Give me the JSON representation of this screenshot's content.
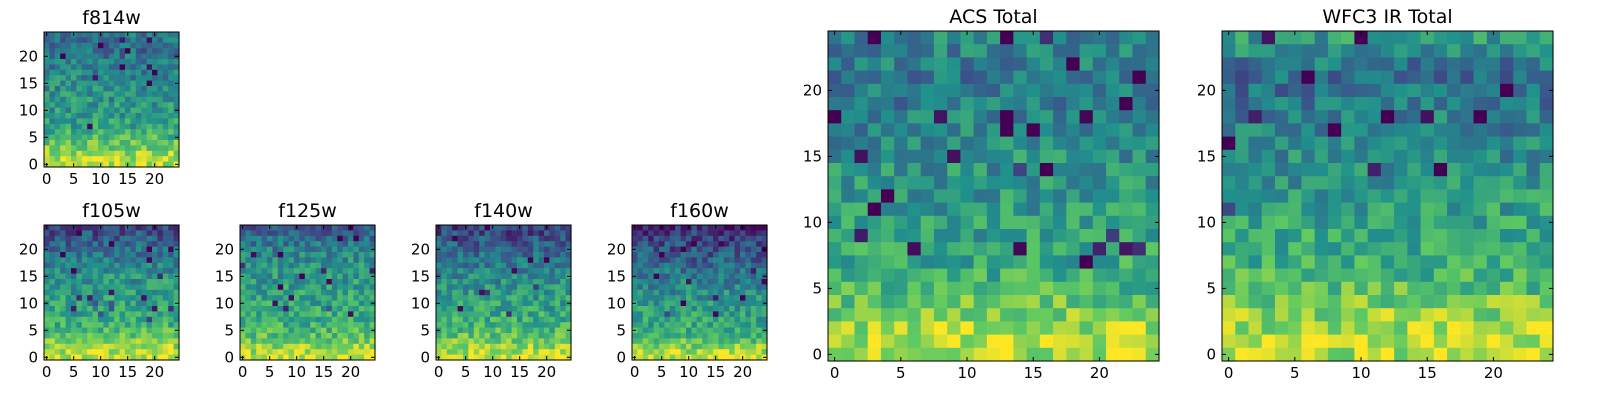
{
  "figure": {
    "background": "#ffffff",
    "colormap": "viridis",
    "colormap_stops": [
      "#440154",
      "#3b528b",
      "#21918c",
      "#5ec962",
      "#fde725"
    ]
  },
  "chart_data": [
    {
      "type": "heatmap",
      "title": "f814w",
      "grid_size": [
        25,
        25
      ],
      "xlim": [
        -0.5,
        24.5
      ],
      "ylim": [
        -0.5,
        24.5
      ],
      "xticks": [
        0,
        5,
        10,
        15,
        20
      ],
      "yticks": [
        0,
        5,
        10,
        15,
        20
      ],
      "origin": "lower",
      "value_range": [
        0,
        1
      ],
      "row_means_top_to_bottom": [
        0.4,
        0.38,
        0.36,
        0.36,
        0.38,
        0.4,
        0.42,
        0.44,
        0.46,
        0.47,
        0.48,
        0.49,
        0.5,
        0.51,
        0.52,
        0.54,
        0.56,
        0.58,
        0.62,
        0.66,
        0.72,
        0.78,
        0.84,
        0.88,
        0.9
      ],
      "pattern_note_seed": 11
    },
    {
      "type": "heatmap",
      "title": "f105w",
      "grid_size": [
        25,
        25
      ],
      "xlim": [
        -0.5,
        24.5
      ],
      "ylim": [
        -0.5,
        24.5
      ],
      "xticks": [
        0,
        5,
        10,
        15,
        20
      ],
      "yticks": [
        0,
        5,
        10,
        15,
        20
      ],
      "origin": "lower",
      "value_range": [
        0,
        1
      ],
      "row_means_top_to_bottom": [
        0.22,
        0.26,
        0.3,
        0.33,
        0.36,
        0.4,
        0.43,
        0.46,
        0.48,
        0.5,
        0.52,
        0.53,
        0.54,
        0.55,
        0.56,
        0.57,
        0.58,
        0.6,
        0.63,
        0.68,
        0.74,
        0.8,
        0.86,
        0.9,
        0.92
      ],
      "pattern_note_seed": 23
    },
    {
      "type": "heatmap",
      "title": "f125w",
      "grid_size": [
        25,
        25
      ],
      "xlim": [
        -0.5,
        24.5
      ],
      "ylim": [
        -0.5,
        24.5
      ],
      "xticks": [
        0,
        5,
        10,
        15,
        20
      ],
      "yticks": [
        0,
        5,
        10,
        15,
        20
      ],
      "origin": "lower",
      "value_range": [
        0,
        1
      ],
      "row_means_top_to_bottom": [
        0.3,
        0.33,
        0.36,
        0.4,
        0.43,
        0.46,
        0.48,
        0.5,
        0.52,
        0.53,
        0.54,
        0.55,
        0.56,
        0.57,
        0.58,
        0.59,
        0.6,
        0.62,
        0.64,
        0.67,
        0.71,
        0.76,
        0.82,
        0.88,
        0.92
      ],
      "pattern_note_seed": 37
    },
    {
      "type": "heatmap",
      "title": "f140w",
      "grid_size": [
        25,
        25
      ],
      "xlim": [
        -0.5,
        24.5
      ],
      "ylim": [
        -0.5,
        24.5
      ],
      "xticks": [
        0,
        5,
        10,
        15,
        20
      ],
      "yticks": [
        0,
        5,
        10,
        15,
        20
      ],
      "origin": "lower",
      "value_range": [
        0,
        1
      ],
      "row_means_top_to_bottom": [
        0.2,
        0.23,
        0.26,
        0.3,
        0.33,
        0.36,
        0.39,
        0.42,
        0.44,
        0.46,
        0.48,
        0.5,
        0.52,
        0.54,
        0.56,
        0.58,
        0.6,
        0.62,
        0.64,
        0.67,
        0.71,
        0.76,
        0.82,
        0.88,
        0.92
      ],
      "pattern_note_seed": 41
    },
    {
      "type": "heatmap",
      "title": "f160w",
      "grid_size": [
        25,
        25
      ],
      "xlim": [
        -0.5,
        24.5
      ],
      "ylim": [
        -0.5,
        24.5
      ],
      "xticks": [
        0,
        5,
        10,
        15,
        20
      ],
      "yticks": [
        0,
        5,
        10,
        15,
        20
      ],
      "origin": "lower",
      "value_range": [
        0,
        1
      ],
      "row_means_top_to_bottom": [
        0.14,
        0.17,
        0.2,
        0.23,
        0.26,
        0.29,
        0.32,
        0.35,
        0.38,
        0.41,
        0.44,
        0.46,
        0.48,
        0.5,
        0.52,
        0.54,
        0.56,
        0.58,
        0.6,
        0.62,
        0.66,
        0.72,
        0.8,
        0.88,
        0.94
      ],
      "pattern_note_seed": 53
    },
    {
      "type": "heatmap",
      "title": "ACS Total",
      "grid_size": [
        25,
        25
      ],
      "xlim": [
        -0.5,
        24.5
      ],
      "ylim": [
        -0.5,
        24.5
      ],
      "xticks": [
        0,
        5,
        10,
        15,
        20
      ],
      "yticks": [
        0,
        5,
        10,
        15,
        20
      ],
      "origin": "lower",
      "value_range": [
        0,
        1
      ],
      "row_means_top_to_bottom": [
        0.46,
        0.44,
        0.42,
        0.4,
        0.4,
        0.42,
        0.44,
        0.46,
        0.48,
        0.5,
        0.51,
        0.52,
        0.53,
        0.54,
        0.55,
        0.56,
        0.58,
        0.6,
        0.64,
        0.68,
        0.74,
        0.8,
        0.86,
        0.9,
        0.88
      ],
      "pattern_note_seed": 67
    },
    {
      "type": "heatmap",
      "title": "WFC3 IR Total",
      "grid_size": [
        25,
        25
      ],
      "xlim": [
        -0.5,
        24.5
      ],
      "ylim": [
        -0.5,
        24.5
      ],
      "xticks": [
        0,
        5,
        10,
        15,
        20
      ],
      "yticks": [
        0,
        5,
        10,
        15,
        20
      ],
      "origin": "lower",
      "value_range": [
        0,
        1
      ],
      "row_means_top_to_bottom": [
        0.54,
        0.5,
        0.4,
        0.36,
        0.38,
        0.4,
        0.42,
        0.44,
        0.46,
        0.48,
        0.5,
        0.52,
        0.54,
        0.56,
        0.58,
        0.6,
        0.62,
        0.64,
        0.66,
        0.7,
        0.76,
        0.82,
        0.86,
        0.9,
        0.86
      ],
      "pattern_note_seed": 79
    }
  ]
}
